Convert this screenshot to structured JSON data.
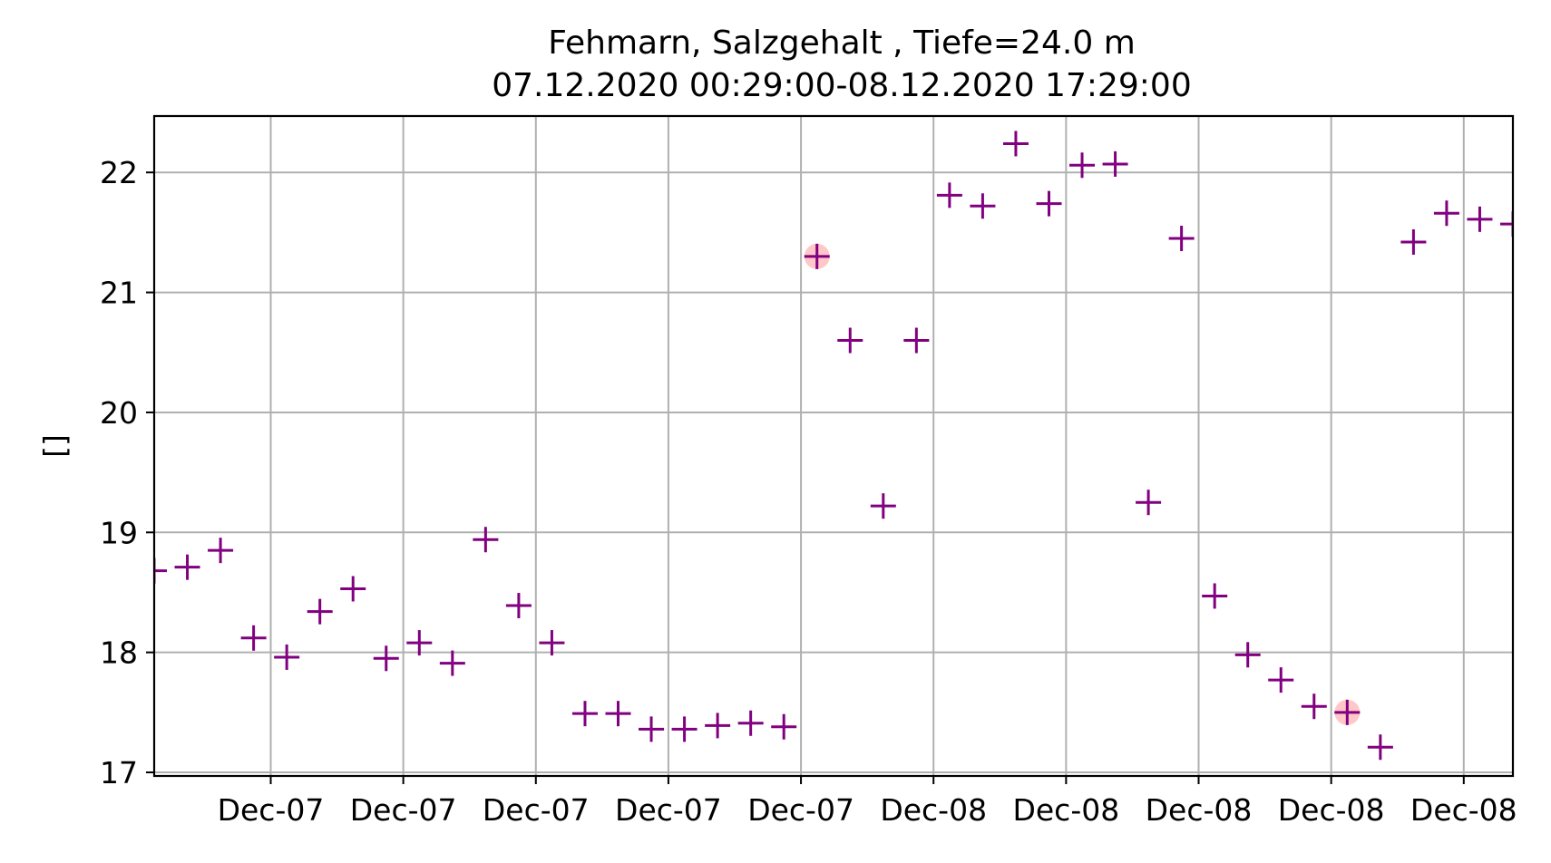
{
  "chart_data": {
    "type": "scatter",
    "title": "Fehmarn, Salzgehalt , Tiefe=24.0 m",
    "subtitle": "07.12.2020 00:29:00-08.12.2020 17:29:00",
    "xlabel": "",
    "ylabel": "[]",
    "ylim": [
      16.97,
      22.47
    ],
    "grid": true,
    "marker": "+",
    "marker_color": "#800080",
    "highlight_color": "#ff9999",
    "y_ticks": [
      17,
      18,
      19,
      20,
      21,
      22
    ],
    "x_tick_labels": [
      "Dec-07",
      "Dec-07",
      "Dec-07",
      "Dec-07",
      "Dec-07",
      "Dec-08",
      "Dec-08",
      "Dec-08",
      "Dec-08",
      "Dec-08"
    ],
    "x_ticks": [
      "2020-12-07 04:00",
      "2020-12-07 08:00",
      "2020-12-07 12:00",
      "2020-12-07 16:00",
      "2020-12-07 20:00",
      "2020-12-08 00:00",
      "2020-12-08 04:00",
      "2020-12-08 08:00",
      "2020-12-08 12:00",
      "2020-12-08 16:00"
    ],
    "xlim": [
      "2020-12-07 00:29",
      "2020-12-08 17:29"
    ],
    "series": [
      {
        "x": [
          "2020-12-07 00:29",
          "2020-12-07 01:29",
          "2020-12-07 02:29",
          "2020-12-07 03:29",
          "2020-12-07 04:29",
          "2020-12-07 05:29",
          "2020-12-07 06:29",
          "2020-12-07 07:29",
          "2020-12-07 08:29",
          "2020-12-07 09:29",
          "2020-12-07 10:29",
          "2020-12-07 11:29",
          "2020-12-07 12:29",
          "2020-12-07 13:29",
          "2020-12-07 14:29",
          "2020-12-07 15:29",
          "2020-12-07 16:29",
          "2020-12-07 17:29",
          "2020-12-07 18:29",
          "2020-12-07 19:29",
          "2020-12-07 20:29",
          "2020-12-07 21:29",
          "2020-12-07 22:29",
          "2020-12-07 23:29",
          "2020-12-08 00:29",
          "2020-12-08 01:29",
          "2020-12-08 02:29",
          "2020-12-08 03:29",
          "2020-12-08 04:29",
          "2020-12-08 05:29",
          "2020-12-08 06:29",
          "2020-12-08 07:29",
          "2020-12-08 08:29",
          "2020-12-08 09:29",
          "2020-12-08 10:29",
          "2020-12-08 11:29",
          "2020-12-08 12:29",
          "2020-12-08 13:29",
          "2020-12-08 14:29",
          "2020-12-08 15:29",
          "2020-12-08 16:29",
          "2020-12-08 17:29"
        ],
        "y": [
          18.68,
          18.71,
          18.85,
          18.12,
          17.96,
          18.34,
          18.53,
          17.95,
          18.08,
          17.91,
          18.94,
          18.39,
          18.08,
          17.49,
          17.49,
          17.36,
          17.36,
          17.39,
          17.41,
          17.38,
          21.3,
          20.6,
          19.22,
          20.6,
          21.81,
          21.72,
          22.24,
          21.74,
          22.06,
          22.07,
          19.25,
          21.45,
          18.47,
          17.98,
          17.77,
          17.55,
          17.5,
          17.21,
          21.42,
          21.66,
          21.61,
          21.57
        ],
        "highlighted": [
          "2020-12-07 20:29",
          "2020-12-08 12:29"
        ]
      }
    ]
  }
}
